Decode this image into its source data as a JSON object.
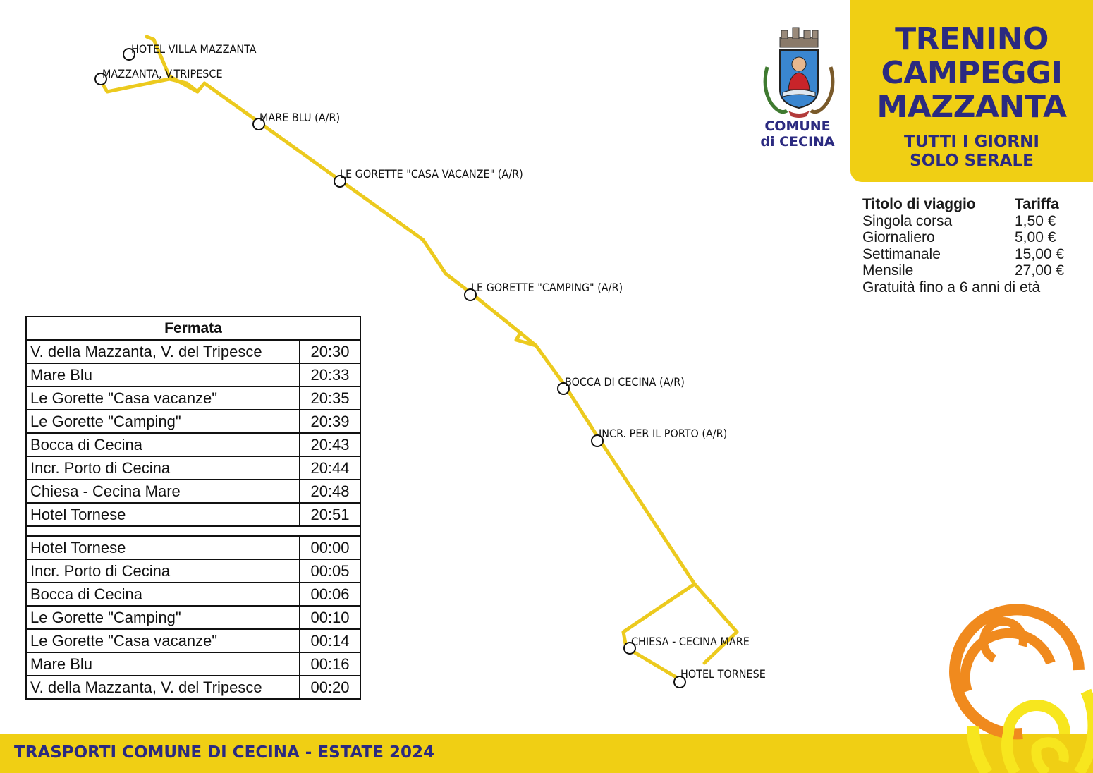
{
  "title": {
    "line1": "TRENINO",
    "line2": "CAMPEGGI",
    "line3": "MAZZANTA",
    "sub1": "TUTTI I GIORNI",
    "sub2": "SOLO SERALE"
  },
  "crest": {
    "line1": "COMUNE",
    "line2": "di CECINA"
  },
  "fares": {
    "header_title": "Titolo di viaggio",
    "header_price": "Tariffa",
    "rows": [
      {
        "name": "Singola corsa",
        "price": "1,50 €"
      },
      {
        "name": "Giornaliero",
        "price": "5,00 €"
      },
      {
        "name": "Settimanale",
        "price": "15,00 €"
      },
      {
        "name": "Mensile",
        "price": "27,00 €"
      }
    ],
    "note": "Gratuità fino a 6 anni di età"
  },
  "stops": [
    "HOTEL VILLA MAZZANTA",
    "MAZZANTA, V.TRIPESCE",
    "MARE BLU (A/R)",
    "LE GORETTE \"CASA VACANZE\" (A/R)",
    "LE GORETTE \"CAMPING\" (A/R)",
    "BOCCA DI CECINA (A/R)",
    "INCR. PER IL PORTO (A/R)",
    "CHIESA - CECINA MARE",
    "HOTEL TORNESE"
  ],
  "timetable": {
    "header": "Fermata",
    "outbound": [
      {
        "stop": "V. della Mazzanta, V. del Tripesce",
        "time": "20:30"
      },
      {
        "stop": "Mare Blu",
        "time": "20:33"
      },
      {
        "stop": "Le Gorette \"Casa vacanze\"",
        "time": "20:35"
      },
      {
        "stop": "Le Gorette \"Camping\"",
        "time": "20:39"
      },
      {
        "stop": "Bocca di Cecina",
        "time": "20:43"
      },
      {
        "stop": "Incr. Porto di Cecina",
        "time": "20:44"
      },
      {
        "stop": "Chiesa - Cecina Mare",
        "time": "20:48"
      },
      {
        "stop": "Hotel Tornese",
        "time": "20:51"
      }
    ],
    "return": [
      {
        "stop": "Hotel Tornese",
        "time": "00:00"
      },
      {
        "stop": "Incr. Porto di Cecina",
        "time": "00:05"
      },
      {
        "stop": "Bocca di Cecina",
        "time": "00:06"
      },
      {
        "stop": "Le Gorette \"Camping\"",
        "time": "00:10"
      },
      {
        "stop": "Le Gorette \"Casa vacanze\"",
        "time": "00:14"
      },
      {
        "stop": "Mare Blu",
        "time": "00:16"
      },
      {
        "stop": "V. della Mazzanta, V. del Tripesce",
        "time": "00:20"
      }
    ]
  },
  "footer": "TRASPORTI COMUNE DI CECINA - ESTATE 2024",
  "colors": {
    "yellow": "#f0cf14",
    "route": "#ecca1e",
    "navy": "#2b2a80",
    "orange": "#f08a1e"
  }
}
